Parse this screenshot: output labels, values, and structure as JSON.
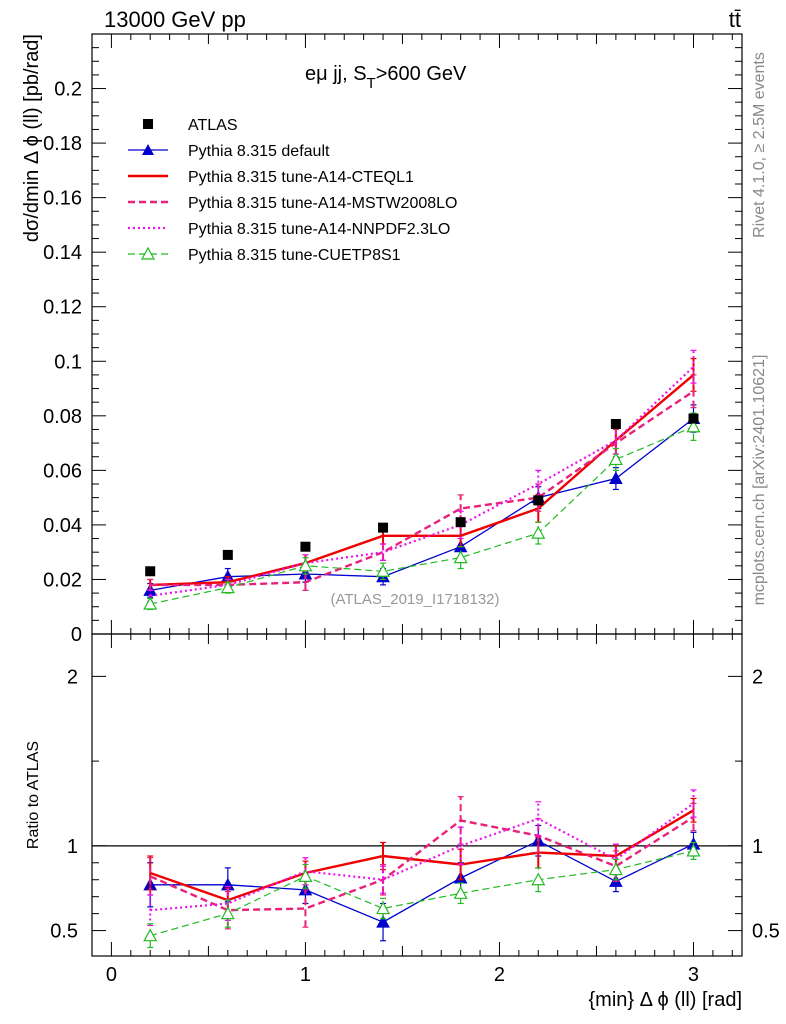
{
  "header": {
    "left": "13000 GeV pp",
    "right": "tt̄",
    "rivet_text": "Rivet 4.1.0, ≥ 2.5M events",
    "mcplots_text": "mcplots.cern.ch [arXiv:2401.10621]"
  },
  "chart_data": {
    "type": "line",
    "title": "eμ jj, S_T>600 GeV",
    "title_main": "eμ jj, S",
    "title_sub": "T",
    "title_tail": ">600 GeV",
    "analysis_tag": "(ATLAS_2019_I1718132)",
    "xlabel": "{min} Δ ϕ (ll) [rad]",
    "ylabel": "dσ/dmin Δ ϕ (ll) [pb/rad]",
    "ratio_ylabel": "Ratio to ATLAS",
    "xlim": [
      -0.1,
      3.25
    ],
    "ylim": [
      0,
      0.22
    ],
    "ratio_ylim": [
      0.35,
      2.25
    ],
    "x_ticks": [
      0,
      1,
      2,
      3
    ],
    "x_tick_labels": [
      "0",
      "1",
      "2",
      "3"
    ],
    "y_ticks": [
      0,
      0.02,
      0.04,
      0.06,
      0.08,
      0.1,
      0.12,
      0.14,
      0.16,
      0.18,
      0.2
    ],
    "y_tick_labels": [
      "0",
      "0.02",
      "0.04",
      "0.06",
      "0.08",
      "0.1",
      "0.12",
      "0.14",
      "0.16",
      "0.18",
      "0.2"
    ],
    "ratio_ticks": [
      0.5,
      1,
      2
    ],
    "ratio_tick_labels": [
      "0.5",
      "1",
      "2"
    ],
    "x": [
      0.2,
      0.6,
      1.0,
      1.4,
      1.8,
      2.2,
      2.6,
      3.0
    ],
    "data": {
      "name": "ATLAS",
      "values": [
        0.023,
        0.029,
        0.032,
        0.039,
        0.041,
        0.049,
        0.077,
        0.079
      ],
      "errors": [
        0.001,
        0.001,
        0.001,
        0.0015,
        0.0015,
        0.002,
        0.003,
        0.003
      ]
    },
    "series": [
      {
        "name": "Pythia 8.315 default",
        "color": "#0000cc",
        "style": "solid",
        "width": 1.3,
        "marker": "triangle-filled",
        "values": [
          0.016,
          0.021,
          0.022,
          0.021,
          0.032,
          0.05,
          0.057,
          0.079
        ],
        "errors": [
          0.0025,
          0.003,
          0.003,
          0.003,
          0.004,
          0.004,
          0.004,
          0.005
        ],
        "ratio": [
          0.77,
          0.77,
          0.74,
          0.55,
          0.81,
          1.03,
          0.79,
          1.01
        ],
        "ratio_errors": [
          0.13,
          0.1,
          0.08,
          0.11,
          0.09,
          0.09,
          0.06,
          0.07
        ]
      },
      {
        "name": "Pythia 8.315 tune-A14-CTEQL1",
        "color": "#ee0000",
        "style": "solid",
        "width": 2.4,
        "marker": "none",
        "values": [
          0.018,
          0.019,
          0.026,
          0.036,
          0.036,
          0.046,
          0.071,
          0.095
        ],
        "errors": [
          0.002,
          0.002,
          0.003,
          0.003,
          0.004,
          0.005,
          0.005,
          0.006
        ],
        "ratio": [
          0.84,
          0.68,
          0.84,
          0.94,
          0.89,
          0.96,
          0.94,
          1.21
        ],
        "ratio_errors": [
          0.1,
          0.07,
          0.07,
          0.08,
          0.09,
          0.09,
          0.07,
          0.07
        ]
      },
      {
        "name": "Pythia 8.315 tune-A14-MSTW2008LO",
        "color": "#e8217a",
        "style": "dashed",
        "width": 2.4,
        "marker": "none",
        "values": [
          0.018,
          0.018,
          0.019,
          0.03,
          0.046,
          0.05,
          0.07,
          0.089
        ],
        "errors": [
          0.002,
          0.002,
          0.003,
          0.003,
          0.005,
          0.005,
          0.005,
          0.006
        ],
        "ratio": [
          0.82,
          0.62,
          0.63,
          0.8,
          1.15,
          1.06,
          0.88,
          1.17
        ],
        "ratio_errors": [
          0.11,
          0.11,
          0.11,
          0.09,
          0.14,
          0.1,
          0.09,
          0.08
        ]
      },
      {
        "name": "Pythia 8.315 tune-A14-NNPDF2.3LO",
        "color": "#ee11ee",
        "style": "dotted",
        "width": 2.2,
        "marker": "none",
        "values": [
          0.014,
          0.018,
          0.026,
          0.03,
          0.04,
          0.055,
          0.071,
          0.098
        ],
        "errors": [
          0.002,
          0.002,
          0.003,
          0.003,
          0.005,
          0.005,
          0.005,
          0.006
        ],
        "ratio": [
          0.62,
          0.66,
          0.85,
          0.8,
          1.0,
          1.16,
          0.92,
          1.25
        ],
        "ratio_errors": [
          0.09,
          0.1,
          0.08,
          0.08,
          0.11,
          0.1,
          0.09,
          0.08
        ]
      },
      {
        "name": "Pythia 8.315 tune-CUETP8S1",
        "color": "#22bb22",
        "style": "dashed",
        "width": 1.2,
        "marker": "triangle-open",
        "values": [
          0.011,
          0.017,
          0.025,
          0.023,
          0.028,
          0.037,
          0.064,
          0.076
        ],
        "errors": [
          0.002,
          0.002,
          0.003,
          0.003,
          0.004,
          0.004,
          0.004,
          0.005
        ],
        "ratio": [
          0.47,
          0.6,
          0.82,
          0.63,
          0.72,
          0.8,
          0.86,
          0.97
        ],
        "ratio_errors": [
          0.07,
          0.08,
          0.07,
          0.06,
          0.06,
          0.07,
          0.06,
          0.05
        ]
      }
    ]
  }
}
